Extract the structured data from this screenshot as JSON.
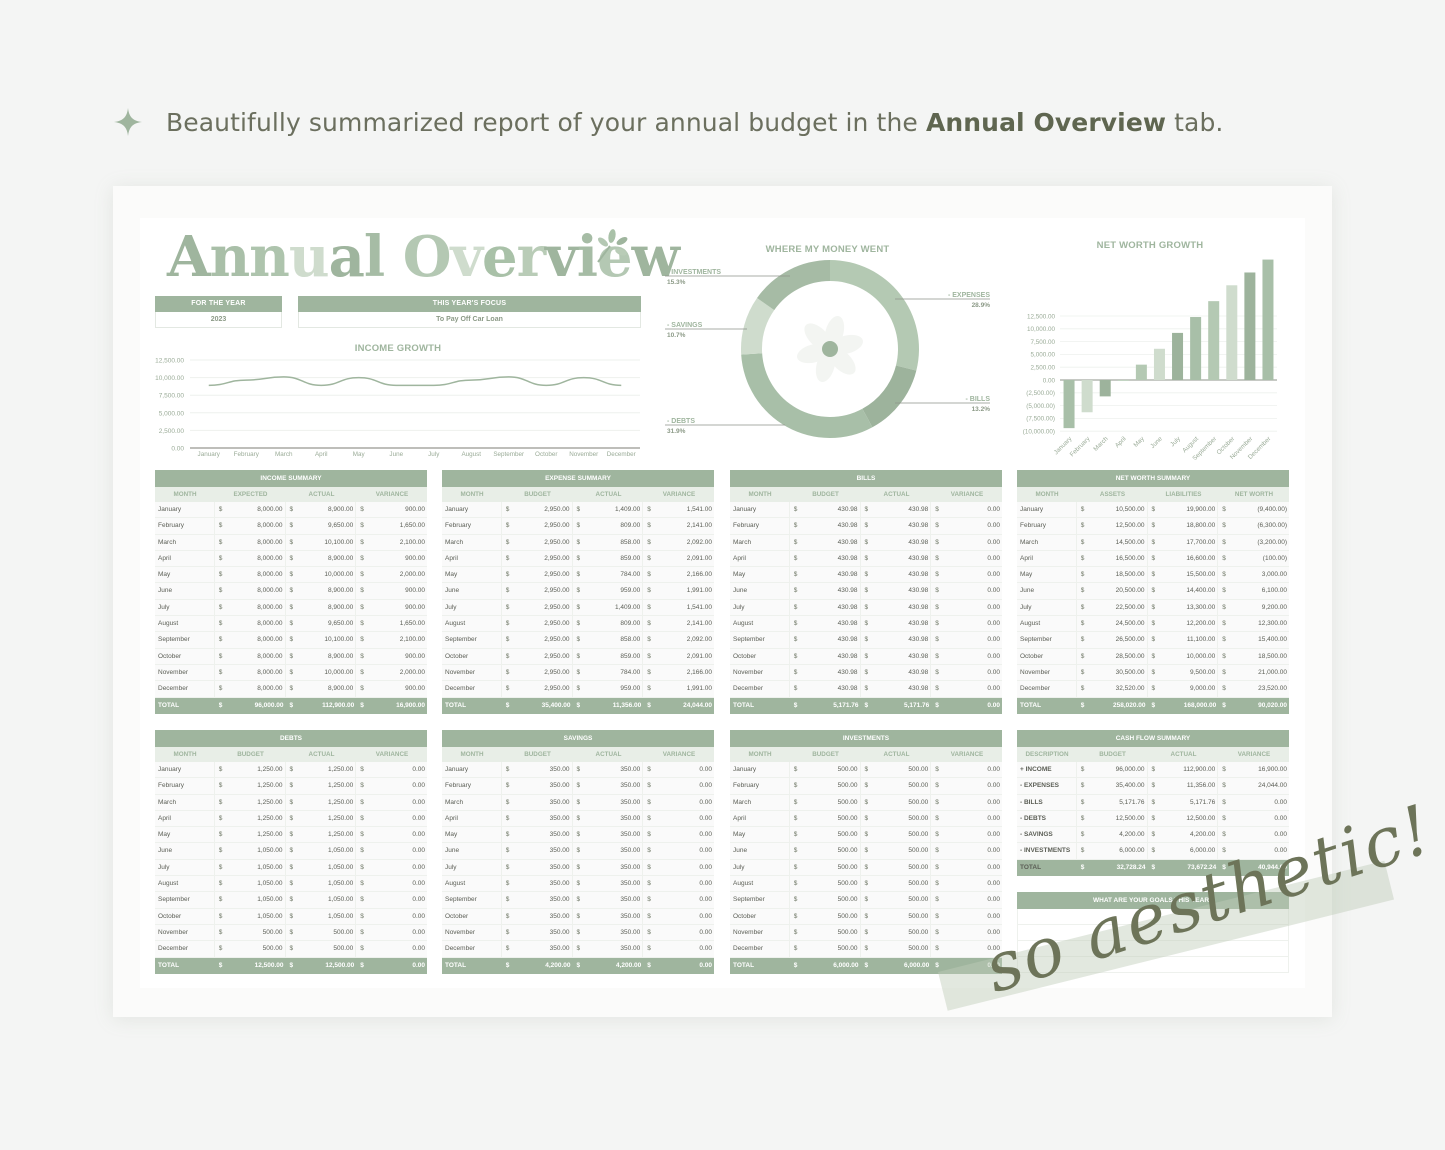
{
  "headline": {
    "icon": "sparkle-icon",
    "text_before": "Beautifully summarized report of your annual budget in the ",
    "text_bold": "Annual Overview",
    "text_after": " tab."
  },
  "colors": {
    "primary_green": "#9fb59e",
    "header_light": "#e8eee7",
    "text_dark": "#5b5e55",
    "script_text": "#6d7459"
  },
  "title": {
    "letters": [
      "A",
      "n",
      "n",
      "u",
      "a",
      "l",
      " ",
      "O",
      "v",
      "e",
      "r",
      "v",
      "i",
      "e",
      "w"
    ],
    "icon": "leaf-sprig-icon"
  },
  "for_the_year": {
    "label": "FOR THE YEAR",
    "value": "2023"
  },
  "focus": {
    "label": "THIS YEAR'S FOCUS",
    "value": "To Pay Off Car Loan"
  },
  "chart_data": [
    {
      "type": "line",
      "title": "INCOME GROWTH",
      "categories": [
        "January",
        "February",
        "March",
        "April",
        "May",
        "June",
        "July",
        "August",
        "September",
        "October",
        "November",
        "December"
      ],
      "values": [
        8900,
        9650,
        10100,
        8900,
        10000,
        8900,
        8900,
        9650,
        10100,
        8900,
        10000,
        8900
      ],
      "yticks": [
        "12,500.00",
        "10,000.00",
        "7,500.00",
        "5,000.00",
        "2,500.00",
        "0.00"
      ],
      "ylim": [
        0,
        12500
      ],
      "grid": true
    },
    {
      "type": "pie",
      "title": "WHERE MY MONEY WENT",
      "categories": [
        "EXPENSES",
        "BILLS",
        "DEBTS",
        "SAVINGS",
        "INVESTMENTS"
      ],
      "values": [
        28.9,
        13.2,
        31.9,
        10.7,
        15.3
      ],
      "labels": [
        "- EXPENSES",
        "- BILLS",
        "- DEBTS",
        "- SAVINGS",
        "- INVESTMENTS"
      ],
      "percent_labels": [
        "28.9%",
        "13.2%",
        "31.9%",
        "10.7%",
        "15.3%"
      ],
      "donut": true,
      "center_icon": "flower-icon"
    },
    {
      "type": "bar",
      "title": "NET WORTH GROWTH",
      "categories": [
        "January",
        "February",
        "March",
        "April",
        "May",
        "June",
        "July",
        "August",
        "September",
        "October",
        "November",
        "December"
      ],
      "values": [
        -9400,
        -6300,
        -3200,
        -100,
        3000,
        6100,
        9200,
        12300,
        15400,
        18500,
        21000,
        23520
      ],
      "yticks": [
        "12,500.00",
        "10,000.00",
        "7,500.00",
        "5,000.00",
        "2,500.00",
        "0.00",
        "(2,500.00)",
        "(5,000.00)",
        "(7,500.00)",
        "(10,000.00)"
      ],
      "ylim": [
        -10000,
        12500
      ],
      "grid": true
    }
  ],
  "tables": {
    "income": {
      "title": "INCOME SUMMARY",
      "headers": [
        "MONTH",
        "EXPECTED",
        "ACTUAL",
        "VARIANCE"
      ],
      "rows": [
        [
          "January",
          "8,000.00",
          "8,900.00",
          "900.00"
        ],
        [
          "February",
          "8,000.00",
          "9,650.00",
          "1,650.00"
        ],
        [
          "March",
          "8,000.00",
          "10,100.00",
          "2,100.00"
        ],
        [
          "April",
          "8,000.00",
          "8,900.00",
          "900.00"
        ],
        [
          "May",
          "8,000.00",
          "10,000.00",
          "2,000.00"
        ],
        [
          "June",
          "8,000.00",
          "8,900.00",
          "900.00"
        ],
        [
          "July",
          "8,000.00",
          "8,900.00",
          "900.00"
        ],
        [
          "August",
          "8,000.00",
          "9,650.00",
          "1,650.00"
        ],
        [
          "September",
          "8,000.00",
          "10,100.00",
          "2,100.00"
        ],
        [
          "October",
          "8,000.00",
          "8,900.00",
          "900.00"
        ],
        [
          "November",
          "8,000.00",
          "10,000.00",
          "2,000.00"
        ],
        [
          "December",
          "8,000.00",
          "8,900.00",
          "900.00"
        ]
      ],
      "total": [
        "TOTAL",
        "96,000.00",
        "112,900.00",
        "16,900.00"
      ]
    },
    "expense": {
      "title": "EXPENSE SUMMARY",
      "headers": [
        "MONTH",
        "BUDGET",
        "ACTUAL",
        "VARIANCE"
      ],
      "rows": [
        [
          "January",
          "2,950.00",
          "1,409.00",
          "1,541.00"
        ],
        [
          "February",
          "2,950.00",
          "809.00",
          "2,141.00"
        ],
        [
          "March",
          "2,950.00",
          "858.00",
          "2,092.00"
        ],
        [
          "April",
          "2,950.00",
          "859.00",
          "2,091.00"
        ],
        [
          "May",
          "2,950.00",
          "784.00",
          "2,166.00"
        ],
        [
          "June",
          "2,950.00",
          "959.00",
          "1,991.00"
        ],
        [
          "July",
          "2,950.00",
          "1,409.00",
          "1,541.00"
        ],
        [
          "August",
          "2,950.00",
          "809.00",
          "2,141.00"
        ],
        [
          "September",
          "2,950.00",
          "858.00",
          "2,092.00"
        ],
        [
          "October",
          "2,950.00",
          "859.00",
          "2,091.00"
        ],
        [
          "November",
          "2,950.00",
          "784.00",
          "2,166.00"
        ],
        [
          "December",
          "2,950.00",
          "959.00",
          "1,991.00"
        ]
      ],
      "total": [
        "TOTAL",
        "35,400.00",
        "11,356.00",
        "24,044.00"
      ]
    },
    "bills": {
      "title": "BILLS",
      "headers": [
        "MONTH",
        "BUDGET",
        "ACTUAL",
        "VARIANCE"
      ],
      "rows": [
        [
          "January",
          "430.98",
          "430.98",
          "0.00"
        ],
        [
          "February",
          "430.98",
          "430.98",
          "0.00"
        ],
        [
          "March",
          "430.98",
          "430.98",
          "0.00"
        ],
        [
          "April",
          "430.98",
          "430.98",
          "0.00"
        ],
        [
          "May",
          "430.98",
          "430.98",
          "0.00"
        ],
        [
          "June",
          "430.98",
          "430.98",
          "0.00"
        ],
        [
          "July",
          "430.98",
          "430.98",
          "0.00"
        ],
        [
          "August",
          "430.98",
          "430.98",
          "0.00"
        ],
        [
          "September",
          "430.98",
          "430.98",
          "0.00"
        ],
        [
          "October",
          "430.98",
          "430.98",
          "0.00"
        ],
        [
          "November",
          "430.98",
          "430.98",
          "0.00"
        ],
        [
          "December",
          "430.98",
          "430.98",
          "0.00"
        ]
      ],
      "total": [
        "TOTAL",
        "5,171.76",
        "5,171.76",
        "0.00"
      ]
    },
    "networth": {
      "title": "NET WORTH SUMMARY",
      "headers": [
        "MONTH",
        "ASSETS",
        "LIABILITIES",
        "NET WORTH"
      ],
      "rows": [
        [
          "January",
          "10,500.00",
          "19,900.00",
          "(9,400.00)"
        ],
        [
          "February",
          "12,500.00",
          "18,800.00",
          "(6,300.00)"
        ],
        [
          "March",
          "14,500.00",
          "17,700.00",
          "(3,200.00)"
        ],
        [
          "April",
          "16,500.00",
          "16,600.00",
          "(100.00)"
        ],
        [
          "May",
          "18,500.00",
          "15,500.00",
          "3,000.00"
        ],
        [
          "June",
          "20,500.00",
          "14,400.00",
          "6,100.00"
        ],
        [
          "July",
          "22,500.00",
          "13,300.00",
          "9,200.00"
        ],
        [
          "August",
          "24,500.00",
          "12,200.00",
          "12,300.00"
        ],
        [
          "September",
          "26,500.00",
          "11,100.00",
          "15,400.00"
        ],
        [
          "October",
          "28,500.00",
          "10,000.00",
          "18,500.00"
        ],
        [
          "November",
          "30,500.00",
          "9,500.00",
          "21,000.00"
        ],
        [
          "December",
          "32,520.00",
          "9,000.00",
          "23,520.00"
        ]
      ],
      "total": [
        "TOTAL",
        "258,020.00",
        "168,000.00",
        "90,020.00"
      ]
    },
    "debts": {
      "title": "DEBTS",
      "headers": [
        "MONTH",
        "BUDGET",
        "ACTUAL",
        "VARIANCE"
      ],
      "rows": [
        [
          "January",
          "1,250.00",
          "1,250.00",
          "0.00"
        ],
        [
          "February",
          "1,250.00",
          "1,250.00",
          "0.00"
        ],
        [
          "March",
          "1,250.00",
          "1,250.00",
          "0.00"
        ],
        [
          "April",
          "1,250.00",
          "1,250.00",
          "0.00"
        ],
        [
          "May",
          "1,250.00",
          "1,250.00",
          "0.00"
        ],
        [
          "June",
          "1,050.00",
          "1,050.00",
          "0.00"
        ],
        [
          "July",
          "1,050.00",
          "1,050.00",
          "0.00"
        ],
        [
          "August",
          "1,050.00",
          "1,050.00",
          "0.00"
        ],
        [
          "September",
          "1,050.00",
          "1,050.00",
          "0.00"
        ],
        [
          "October",
          "1,050.00",
          "1,050.00",
          "0.00"
        ],
        [
          "November",
          "500.00",
          "500.00",
          "0.00"
        ],
        [
          "December",
          "500.00",
          "500.00",
          "0.00"
        ]
      ],
      "total": [
        "TOTAL",
        "12,500.00",
        "12,500.00",
        "0.00"
      ]
    },
    "savings": {
      "title": "SAVINGS",
      "headers": [
        "MONTH",
        "BUDGET",
        "ACTUAL",
        "VARIANCE"
      ],
      "rows": [
        [
          "January",
          "350.00",
          "350.00",
          "0.00"
        ],
        [
          "February",
          "350.00",
          "350.00",
          "0.00"
        ],
        [
          "March",
          "350.00",
          "350.00",
          "0.00"
        ],
        [
          "April",
          "350.00",
          "350.00",
          "0.00"
        ],
        [
          "May",
          "350.00",
          "350.00",
          "0.00"
        ],
        [
          "June",
          "350.00",
          "350.00",
          "0.00"
        ],
        [
          "July",
          "350.00",
          "350.00",
          "0.00"
        ],
        [
          "August",
          "350.00",
          "350.00",
          "0.00"
        ],
        [
          "September",
          "350.00",
          "350.00",
          "0.00"
        ],
        [
          "October",
          "350.00",
          "350.00",
          "0.00"
        ],
        [
          "November",
          "350.00",
          "350.00",
          "0.00"
        ],
        [
          "December",
          "350.00",
          "350.00",
          "0.00"
        ]
      ],
      "total": [
        "TOTAL",
        "4,200.00",
        "4,200.00",
        "0.00"
      ]
    },
    "investments": {
      "title": "INVESTMENTS",
      "headers": [
        "MONTH",
        "BUDGET",
        "ACTUAL",
        "VARIANCE"
      ],
      "rows": [
        [
          "January",
          "500.00",
          "500.00",
          "0.00"
        ],
        [
          "February",
          "500.00",
          "500.00",
          "0.00"
        ],
        [
          "March",
          "500.00",
          "500.00",
          "0.00"
        ],
        [
          "April",
          "500.00",
          "500.00",
          "0.00"
        ],
        [
          "May",
          "500.00",
          "500.00",
          "0.00"
        ],
        [
          "June",
          "500.00",
          "500.00",
          "0.00"
        ],
        [
          "July",
          "500.00",
          "500.00",
          "0.00"
        ],
        [
          "August",
          "500.00",
          "500.00",
          "0.00"
        ],
        [
          "September",
          "500.00",
          "500.00",
          "0.00"
        ],
        [
          "October",
          "500.00",
          "500.00",
          "0.00"
        ],
        [
          "November",
          "500.00",
          "500.00",
          "0.00"
        ],
        [
          "December",
          "500.00",
          "500.00",
          "0.00"
        ]
      ],
      "total": [
        "TOTAL",
        "6,000.00",
        "6,000.00",
        "0.00"
      ]
    },
    "cashflow": {
      "title": "CASH FLOW SUMMARY",
      "headers": [
        "DESCRIPTION",
        "BUDGET",
        "ACTUAL",
        "VARIANCE"
      ],
      "rows": [
        [
          "+ INCOME",
          "96,000.00",
          "112,900.00",
          "16,900.00"
        ],
        [
          "- EXPENSES",
          "35,400.00",
          "11,356.00",
          "24,044.00"
        ],
        [
          "- BILLS",
          "5,171.76",
          "5,171.76",
          "0.00"
        ],
        [
          "- DEBTS",
          "12,500.00",
          "12,500.00",
          "0.00"
        ],
        [
          "- SAVINGS",
          "4,200.00",
          "4,200.00",
          "0.00"
        ],
        [
          "- INVESTMENTS",
          "6,000.00",
          "6,000.00",
          "0.00"
        ]
      ],
      "total": [
        "TOTAL",
        "32,728.24",
        "73,672.24",
        "40,944.00"
      ]
    }
  },
  "currency_symbol": "$",
  "goals": {
    "title": "WHAT ARE YOUR GOALS THIS YEAR?",
    "lines": [
      "",
      "",
      "",
      ""
    ]
  },
  "overlay": {
    "script_text": "so aesthetic!"
  }
}
